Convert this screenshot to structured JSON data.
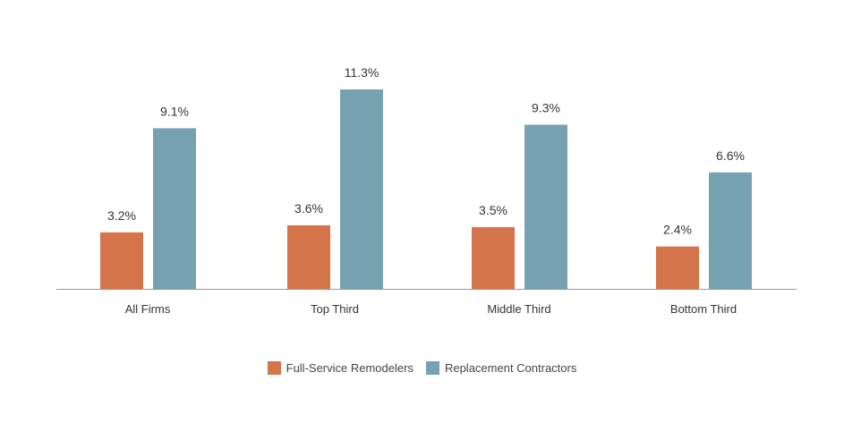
{
  "chart_data": {
    "type": "bar",
    "categories": [
      "All Firms",
      "Top Third",
      "Middle Third",
      "Bottom Third"
    ],
    "series": [
      {
        "name": "Full-Service Remodelers",
        "values": [
          3.2,
          3.6,
          3.5,
          2.4
        ],
        "labels": [
          "3.2%",
          "3.6%",
          "3.5%",
          "2.4%"
        ],
        "color": "#D4744A"
      },
      {
        "name": "Replacement Contractors",
        "values": [
          9.1,
          11.3,
          9.3,
          6.6
        ],
        "labels": [
          "9.1%",
          "11.3%",
          "9.3%",
          "6.6%"
        ],
        "color": "#75A1B1"
      }
    ],
    "title": "",
    "xlabel": "",
    "ylabel": "",
    "ylim": [
      0,
      11.3
    ],
    "grid": false,
    "legend_position": "bottom"
  }
}
